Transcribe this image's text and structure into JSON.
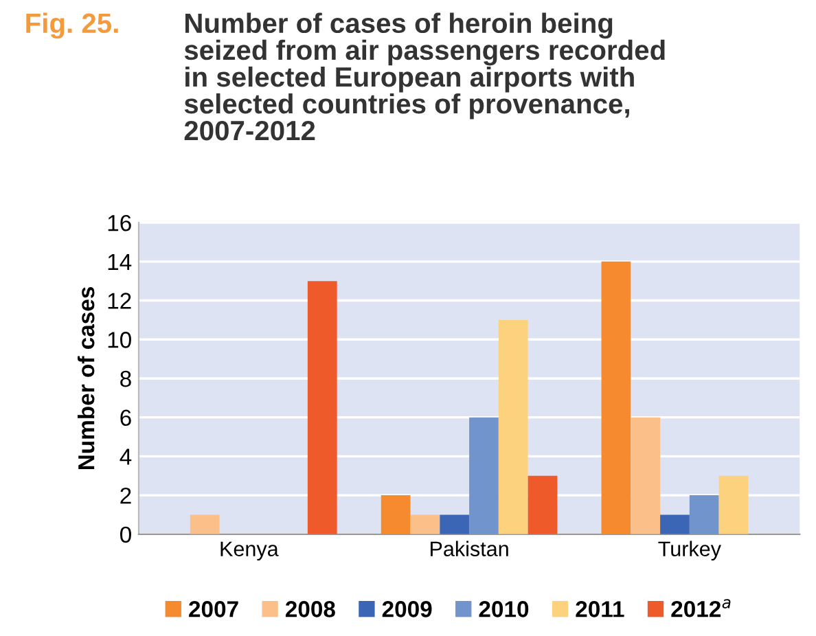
{
  "chart_data": {
    "type": "bar",
    "title": "Number of cases of heroin being\nseized from air passengers recorded\nin selected European airports with\nselected countries of provenance,\n2007-2012",
    "annotations": [
      "Fig. 25."
    ],
    "ylabel": "Number of cases",
    "categories": [
      "Kenya",
      "Pakistan",
      "Turkey"
    ],
    "series": [
      {
        "name": "2007",
        "color": "#f58a2e",
        "values": [
          0,
          2,
          14
        ]
      },
      {
        "name": "2008",
        "color": "#fbbf8a",
        "values": [
          1,
          1,
          6
        ]
      },
      {
        "name": "2009",
        "color": "#3a66b5",
        "values": [
          0,
          1,
          1
        ]
      },
      {
        "name": "2010",
        "color": "#7294cc",
        "values": [
          0,
          6,
          2
        ]
      },
      {
        "name": "2011",
        "color": "#fdd27f",
        "values": [
          0,
          11,
          3
        ]
      },
      {
        "name": "2012$^{a}$",
        "color": "#ef5a2b",
        "values": [
          13,
          3,
          0
        ]
      }
    ],
    "ylim": [
      0,
      16
    ],
    "yticks": [
      0,
      2,
      4,
      6,
      8,
      10,
      12,
      14,
      16
    ],
    "grid": "y",
    "legend": "bottom"
  }
}
